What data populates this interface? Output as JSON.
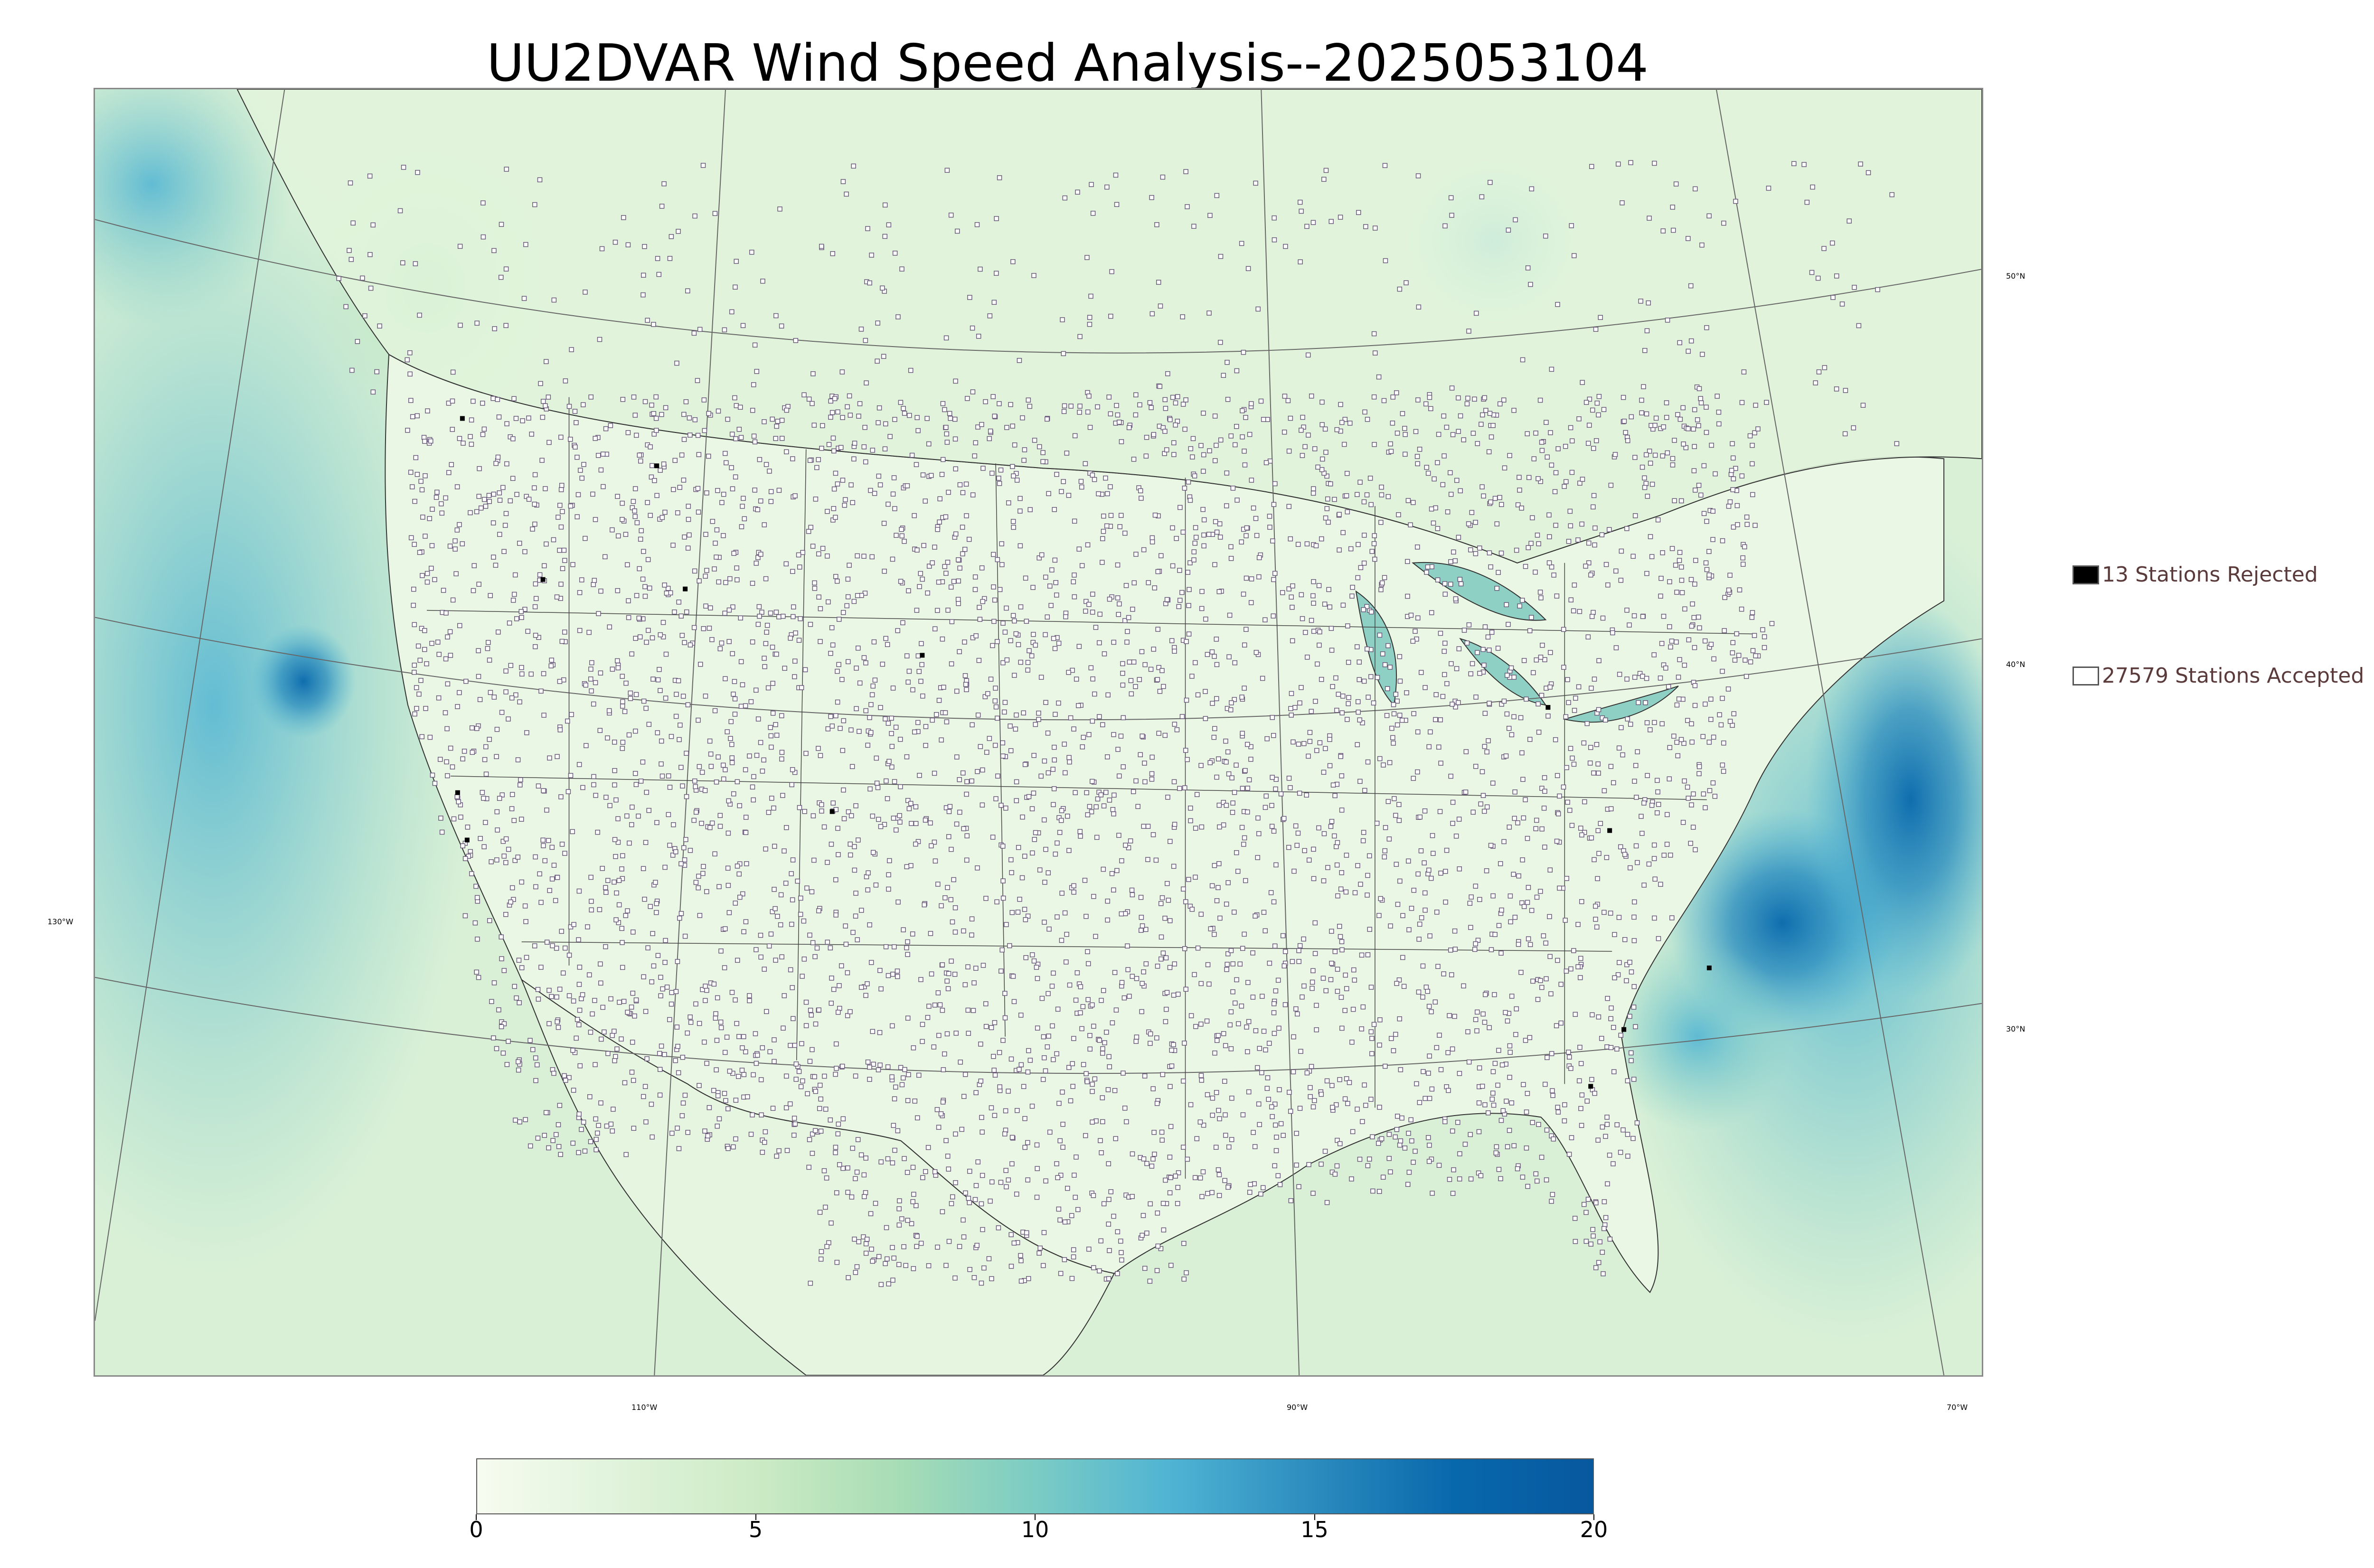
{
  "title": "UU2DVAR Wind Speed Analysis--2025053104",
  "lat_labels": [
    "50°N",
    "40°N",
    "30°N"
  ],
  "lon_labels": [
    "130°W",
    "110°W",
    "90°W",
    "70°W"
  ],
  "legend": {
    "rejected": {
      "label": "13 Stations Rejected",
      "color": "#000000"
    },
    "accepted": {
      "label": "27579 Stations Accepted",
      "color": "#ffffff"
    }
  },
  "colorbar": {
    "ticks": [
      "0",
      "5",
      "10",
      "15",
      "20"
    ],
    "min": 0,
    "max": 20,
    "colors": [
      "#f7fcf0",
      "#e0f3db",
      "#ccebc5",
      "#a8ddb5",
      "#7bccc4",
      "#4eb3d3",
      "#2b8cbe",
      "#0868ac",
      "#08589e"
    ]
  },
  "map": {
    "ocean_color": "#b9e3c4",
    "land_color": "#e6f5df",
    "high_wind_color": "#2b8cbe",
    "station_color": "#6a5a7a"
  }
}
